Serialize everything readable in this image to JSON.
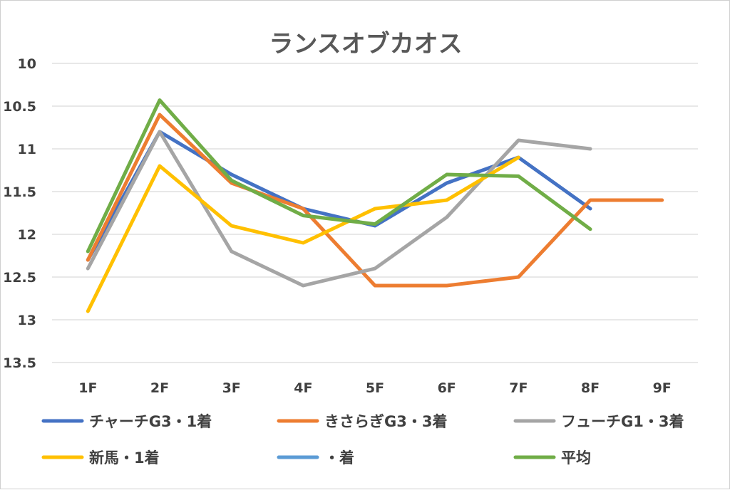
{
  "chart_data": {
    "type": "line",
    "title": "ランスオブカオス",
    "xlabel": "",
    "ylabel": "",
    "categories": [
      "1F",
      "2F",
      "3F",
      "4F",
      "5F",
      "6F",
      "7F",
      "8F",
      "9F"
    ],
    "y_inverted": true,
    "ylim": [
      10,
      13.5
    ],
    "yticks": [
      "10",
      "10.5",
      "11",
      "11.5",
      "12",
      "12.5",
      "13",
      "13.5"
    ],
    "grid": true,
    "legend_position": "bottom",
    "series": [
      {
        "name": "チャーチG3・1着",
        "color": "#4472C4",
        "values": [
          12.3,
          10.8,
          11.3,
          11.7,
          11.9,
          11.4,
          11.1,
          11.7,
          null
        ]
      },
      {
        "name": "きさらぎG3・3着",
        "color": "#ED7D31",
        "values": [
          12.3,
          10.6,
          11.4,
          11.7,
          12.6,
          12.6,
          12.5,
          11.6,
          11.6
        ]
      },
      {
        "name": "フューチG1・3着",
        "color": "#A5A5A5",
        "values": [
          12.4,
          10.8,
          12.2,
          12.6,
          12.4,
          11.8,
          10.9,
          11.0,
          null
        ]
      },
      {
        "name": "新馬・1着",
        "color": "#FFC000",
        "values": [
          12.9,
          11.2,
          11.9,
          12.1,
          11.7,
          11.6,
          11.1,
          null,
          null
        ]
      },
      {
        "name": "・着",
        "color": "#5B9BD5",
        "values": [
          null,
          null,
          null,
          null,
          null,
          null,
          null,
          null,
          null
        ]
      },
      {
        "name": "平均",
        "color": "#70AD47",
        "values": [
          12.2,
          10.43,
          11.37,
          11.78,
          11.88,
          11.3,
          11.32,
          11.94,
          null
        ]
      }
    ]
  }
}
